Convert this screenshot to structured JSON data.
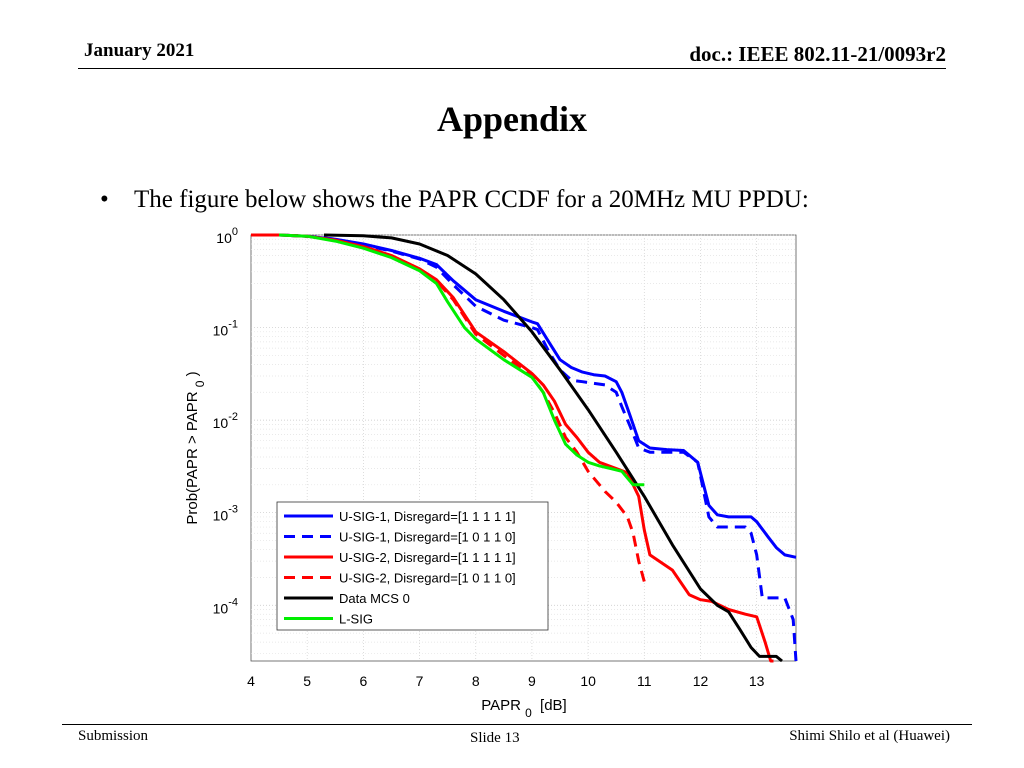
{
  "header": {
    "date": "January 2021",
    "doc": "doc.: IEEE 802.11-21/0093r2"
  },
  "slide": {
    "title": "Appendix",
    "bullet": "The figure below shows the PAPR CCDF for a 20MHz MU PPDU:"
  },
  "footer": {
    "left": "Submission",
    "center": "Slide 13",
    "right": "Shimi Shilo et al (Huawei)"
  },
  "chart_data": {
    "type": "line",
    "title": "",
    "xlabel": "PAPR",
    "xlabel_sub": "0",
    "xlabel_unit": "[dB]",
    "ylabel": "Prob(PAPR > PAPR",
    "ylabel_sub": "0",
    "ylabel_close": ")",
    "xlim": [
      4,
      13.7
    ],
    "ylim": [
      2.5e-05,
      1
    ],
    "yscale": "log",
    "grid": true,
    "x_ticks": [
      4,
      5,
      6,
      7,
      8,
      9,
      10,
      11,
      12,
      13
    ],
    "y_ticks": [
      {
        "value": 1,
        "base": "10",
        "exp": "0"
      },
      {
        "value": 0.1,
        "base": "10",
        "exp": "-1"
      },
      {
        "value": 0.01,
        "base": "10",
        "exp": "-2"
      },
      {
        "value": 0.001,
        "base": "10",
        "exp": "-3"
      },
      {
        "value": 0.0001,
        "base": "10",
        "exp": "-4"
      }
    ],
    "legend_position": "bottom-left",
    "series": [
      {
        "name": "U-SIG-1, Disregard=[1 1 1 1 1]",
        "color": "#0000ff",
        "dash": "solid",
        "x": [
          4,
          4.5,
          5,
          5.5,
          6,
          6.5,
          7,
          7.3,
          7.6,
          8,
          8.5,
          9,
          9.1,
          9.3,
          9.5,
          9.7,
          9.9,
          10.1,
          10.3,
          10.5,
          10.6,
          10.75,
          10.9,
          11.1,
          11.4,
          11.7,
          11.95,
          12.15,
          12.3,
          12.5,
          12.7,
          12.9,
          13.0,
          13.2,
          13.35,
          13.5,
          13.7
        ],
        "y": [
          1,
          1,
          0.97,
          0.9,
          0.8,
          0.68,
          0.56,
          0.48,
          0.32,
          0.2,
          0.15,
          0.115,
          0.11,
          0.07,
          0.045,
          0.037,
          0.033,
          0.031,
          0.03,
          0.026,
          0.02,
          0.011,
          0.006,
          0.005,
          0.0048,
          0.0047,
          0.0035,
          0.0012,
          0.00095,
          0.0009,
          0.0009,
          0.0009,
          0.0008,
          0.00055,
          0.00042,
          0.00035,
          0.00033
        ]
      },
      {
        "name": "U-SIG-1, Disregard=[1 0 1 1 0]",
        "color": "#0000ff",
        "dash": "dashed",
        "x": [
          4,
          4.5,
          5,
          5.5,
          6,
          6.5,
          7,
          7.3,
          7.6,
          8,
          8.5,
          9,
          9.1,
          9.3,
          9.5,
          9.7,
          9.9,
          10.1,
          10.3,
          10.5,
          10.6,
          10.75,
          10.9,
          11.1,
          11.4,
          11.7,
          11.95,
          12.15,
          12.3,
          12.5,
          12.7,
          12.8,
          12.9,
          13.0,
          13.1,
          13.35,
          13.5,
          13.65,
          13.7
        ],
        "y": [
          1,
          1,
          0.97,
          0.9,
          0.78,
          0.67,
          0.55,
          0.45,
          0.29,
          0.17,
          0.12,
          0.1,
          0.095,
          0.055,
          0.035,
          0.027,
          0.026,
          0.025,
          0.024,
          0.02,
          0.014,
          0.0085,
          0.005,
          0.0045,
          0.0045,
          0.0045,
          0.0035,
          0.0009,
          0.0007,
          0.0007,
          0.0007,
          0.0007,
          0.0006,
          0.00035,
          0.00012,
          0.00012,
          0.00012,
          7e-05,
          2.5e-05
        ]
      },
      {
        "name": "U-SIG-2, Disregard=[1 1 1 1 1]",
        "color": "#ff0000",
        "dash": "solid",
        "x": [
          4,
          4.5,
          5,
          5.5,
          6,
          6.5,
          7,
          7.3,
          7.6,
          8,
          8.5,
          9,
          9.2,
          9.4,
          9.6,
          9.8,
          10.0,
          10.2,
          10.5,
          10.7,
          10.9,
          11.0,
          11.1,
          11.5,
          11.8,
          12.0,
          12.2,
          12.5,
          12.8,
          13.0,
          13.15,
          13.25,
          13.3
        ],
        "y": [
          1,
          1,
          0.97,
          0.88,
          0.75,
          0.6,
          0.43,
          0.33,
          0.21,
          0.09,
          0.055,
          0.032,
          0.024,
          0.016,
          0.009,
          0.0065,
          0.0045,
          0.0035,
          0.003,
          0.0027,
          0.0015,
          0.00065,
          0.00035,
          0.00024,
          0.00013,
          0.000115,
          0.00011,
          9e-05,
          8e-05,
          7.5e-05,
          4e-05,
          2.5e-05,
          2.5e-05
        ]
      },
      {
        "name": "U-SIG-2, Disregard=[1 0 1 1 0]",
        "color": "#ff0000",
        "dash": "dashed",
        "x": [
          4,
          4.5,
          5,
          5.5,
          6,
          6.5,
          7,
          7.3,
          7.6,
          8,
          8.5,
          9,
          9.2,
          9.4,
          9.6,
          9.8,
          10.0,
          10.3,
          10.5,
          10.7,
          10.8,
          10.9,
          11.0
        ],
        "y": [
          1,
          1,
          0.97,
          0.87,
          0.74,
          0.59,
          0.42,
          0.32,
          0.2,
          0.085,
          0.05,
          0.03,
          0.02,
          0.012,
          0.0065,
          0.0045,
          0.0028,
          0.0017,
          0.0013,
          0.0009,
          0.0006,
          0.0003,
          0.00018
        ]
      },
      {
        "name": "Data MCS 0",
        "color": "#000000",
        "dash": "solid",
        "x": [
          5.3,
          6,
          6.5,
          7,
          7.5,
          8,
          8.5,
          9,
          9.5,
          10,
          10.5,
          11,
          11.5,
          12,
          12.3,
          12.5,
          12.7,
          12.9,
          13.05,
          13.2,
          13.35,
          13.45
        ],
        "y": [
          1,
          0.98,
          0.93,
          0.8,
          0.6,
          0.38,
          0.2,
          0.09,
          0.035,
          0.013,
          0.0045,
          0.0015,
          0.00045,
          0.00015,
          0.0001,
          8.5e-05,
          5.5e-05,
          3.5e-05,
          2.8e-05,
          2.8e-05,
          2.8e-05,
          2.5e-05
        ]
      },
      {
        "name": "L-SIG",
        "color": "#00ee00",
        "dash": "solid",
        "x": [
          4.5,
          5,
          5.5,
          6,
          6.5,
          7,
          7.3,
          7.5,
          7.8,
          8,
          8.5,
          9,
          9.2,
          9.4,
          9.6,
          9.8,
          10.0,
          10.2,
          10.4,
          10.6,
          10.8,
          11.0
        ],
        "y": [
          1,
          0.97,
          0.86,
          0.72,
          0.57,
          0.41,
          0.3,
          0.19,
          0.1,
          0.075,
          0.045,
          0.029,
          0.02,
          0.01,
          0.0055,
          0.0042,
          0.0035,
          0.0032,
          0.003,
          0.0028,
          0.002,
          0.002
        ]
      }
    ]
  }
}
